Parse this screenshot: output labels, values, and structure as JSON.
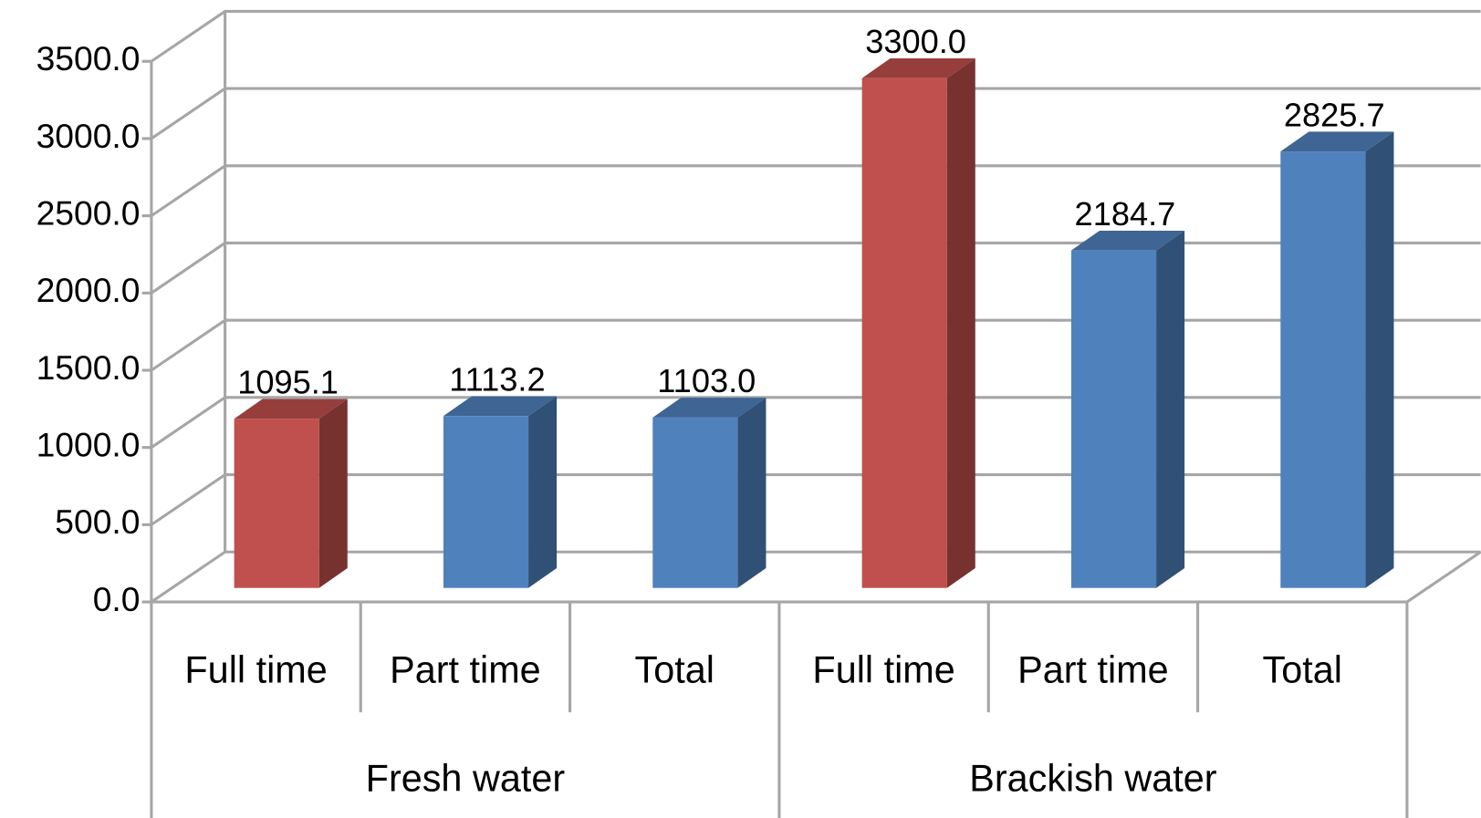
{
  "chart_data": {
    "type": "bar3d",
    "groups": [
      "Fresh water",
      "Brackish water"
    ],
    "categories": [
      "Full time",
      "Part time",
      "Total",
      "Full time",
      "Part time",
      "Total"
    ],
    "values": [
      1095.1,
      1113.2,
      1103.0,
      3300.0,
      2184.7,
      2825.7
    ],
    "value_labels": [
      "1095.1",
      "1113.2",
      "1103.0",
      "3300.0",
      "2184.7",
      "2825.7"
    ],
    "colors": [
      "#c0504d",
      "#4f81bd",
      "#4f81bd",
      "#c0504d",
      "#4f81bd",
      "#4f81bd"
    ],
    "ylim": [
      0,
      3500
    ],
    "yticks": [
      {
        "value": 0,
        "label": "0.0"
      },
      {
        "value": 500,
        "label": "500.0"
      },
      {
        "value": 1000,
        "label": "1000.0"
      },
      {
        "value": 1500,
        "label": "1500.0"
      },
      {
        "value": 2000,
        "label": "2000.0"
      },
      {
        "value": 2500,
        "label": "2500.0"
      },
      {
        "value": 3000,
        "label": "3000.0"
      },
      {
        "value": 3500,
        "label": "3500.0"
      }
    ],
    "grid": true
  }
}
